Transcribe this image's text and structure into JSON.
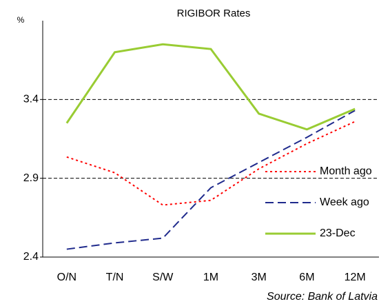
{
  "chart_data": {
    "type": "line",
    "title": "RIGIBOR Rates",
    "y_label": "%",
    "annotation": "Source: Bank of Latvia",
    "categories": [
      "O/N",
      "T/N",
      "S/W",
      "1M",
      "3M",
      "6M",
      "12M"
    ],
    "series": [
      {
        "name": "Month ago",
        "color": "#ff0000",
        "style": "dotted",
        "values": [
          3.035,
          2.935,
          2.73,
          2.76,
          2.96,
          3.12,
          3.26
        ]
      },
      {
        "name": "Week ago",
        "color": "#1f2a8c",
        "style": "dashed",
        "values": [
          2.45,
          2.49,
          2.52,
          2.84,
          3.0,
          3.16,
          3.33
        ]
      },
      {
        "name": "23-Dec",
        "color": "#99cc33",
        "style": "solid",
        "values": [
          3.25,
          3.7,
          3.75,
          3.72,
          3.31,
          3.21,
          3.34
        ]
      }
    ],
    "ylim": [
      2.4,
      3.9
    ],
    "yticks": [
      2.4,
      2.9,
      3.4
    ],
    "grid": true,
    "legend": "lower right"
  }
}
